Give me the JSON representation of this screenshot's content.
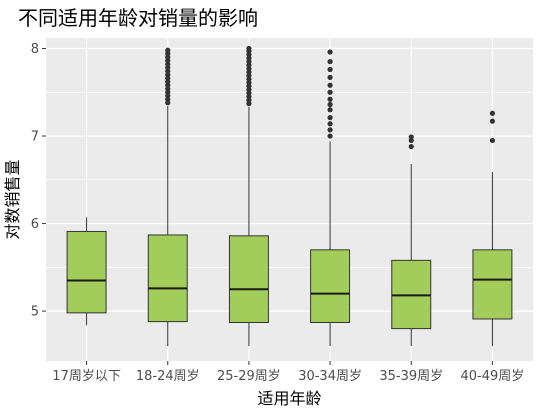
{
  "chart_data": {
    "type": "boxplot",
    "title": "不同适用年龄对销量的影响",
    "xlabel": "适用年龄",
    "ylabel": "对数销售量",
    "categories": [
      "17周岁以下",
      "18-24周岁",
      "25-29周岁",
      "30-34周岁",
      "35-39周岁",
      "40-49周岁"
    ],
    "ylim": [
      4.43,
      8.12
    ],
    "yticks": [
      5,
      6,
      7,
      8
    ],
    "grid": true,
    "box_fill": "#a2cd5a",
    "panel_bg": "#ebebeb",
    "boxes": [
      {
        "category": "17周岁以下",
        "min": 4.84,
        "q1": 4.98,
        "median": 5.35,
        "q3": 5.91,
        "max": 6.07,
        "outliers": []
      },
      {
        "category": "18-24周岁",
        "min": 4.6,
        "q1": 4.88,
        "median": 5.26,
        "q3": 5.87,
        "max": 7.34,
        "outliers": [
          7.38,
          7.42,
          7.46,
          7.5,
          7.54,
          7.58,
          7.62,
          7.66,
          7.7,
          7.74,
          7.78,
          7.82,
          7.86,
          7.9,
          7.94,
          7.98
        ]
      },
      {
        "category": "25-29周岁",
        "min": 4.6,
        "q1": 4.87,
        "median": 5.25,
        "q3": 5.86,
        "max": 7.33,
        "outliers": [
          7.37,
          7.41,
          7.45,
          7.49,
          7.53,
          7.57,
          7.61,
          7.65,
          7.69,
          7.73,
          7.77,
          7.81,
          7.85,
          7.89,
          7.93,
          7.97,
          8.0
        ]
      },
      {
        "category": "30-34周岁",
        "min": 4.6,
        "q1": 4.87,
        "median": 5.2,
        "q3": 5.7,
        "max": 6.94,
        "outliers": [
          7.0,
          7.07,
          7.14,
          7.21,
          7.3,
          7.36,
          7.42,
          7.5,
          7.58,
          7.67,
          7.76,
          7.85,
          7.96
        ]
      },
      {
        "category": "35-39周岁",
        "min": 4.6,
        "q1": 4.8,
        "median": 5.18,
        "q3": 5.58,
        "max": 6.68,
        "outliers": [
          6.88,
          6.95,
          6.99
        ]
      },
      {
        "category": "40-49周岁",
        "min": 4.6,
        "q1": 4.91,
        "median": 5.36,
        "q3": 5.7,
        "max": 6.59,
        "outliers": [
          6.95,
          7.17,
          7.26
        ]
      }
    ]
  }
}
